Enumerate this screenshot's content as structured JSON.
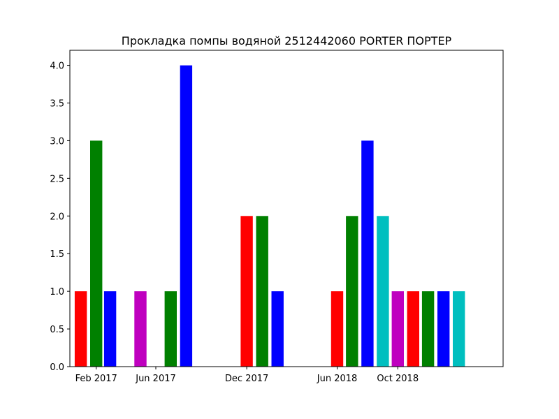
{
  "chart_data": {
    "type": "bar",
    "title": "Прокладка помпы водяной 2512442060 PORTER ПОРТЕР",
    "xlabel": "",
    "ylabel": "",
    "x_axis": {
      "type": "date",
      "tick_labels": [
        "Feb 2017",
        "Jun 2017",
        "Dec 2017",
        "Jun 2018",
        "Oct 2018"
      ],
      "tick_dates": [
        "2017-02-01",
        "2017-06-01",
        "2017-12-01",
        "2018-06-01",
        "2018-10-01"
      ],
      "range": [
        "2016-12-10",
        "2019-05-01"
      ]
    },
    "ylim": [
      0,
      4.2
    ],
    "yticks": [
      0.0,
      0.5,
      1.0,
      1.5,
      2.0,
      2.5,
      3.0,
      3.5,
      4.0
    ],
    "grid": false,
    "legend": "none",
    "bars": [
      {
        "x": "2017-01-01",
        "value": 1,
        "color": "#ff0000"
      },
      {
        "x": "2017-02-01",
        "value": 3,
        "color": "#008000"
      },
      {
        "x": "2017-03-01",
        "value": 1,
        "color": "#0000ff"
      },
      {
        "x": "2017-05-01",
        "value": 1,
        "color": "#bf00bf"
      },
      {
        "x": "2017-07-01",
        "value": 1,
        "color": "#008000"
      },
      {
        "x": "2017-08-01",
        "value": 4,
        "color": "#0000ff"
      },
      {
        "x": "2017-12-01",
        "value": 2,
        "color": "#ff0000"
      },
      {
        "x": "2018-01-01",
        "value": 2,
        "color": "#008000"
      },
      {
        "x": "2018-02-01",
        "value": 1,
        "color": "#0000ff"
      },
      {
        "x": "2018-06-01",
        "value": 1,
        "color": "#ff0000"
      },
      {
        "x": "2018-07-01",
        "value": 2,
        "color": "#008000"
      },
      {
        "x": "2018-08-01",
        "value": 3,
        "color": "#0000ff"
      },
      {
        "x": "2018-09-01",
        "value": 2,
        "color": "#00bfbf"
      },
      {
        "x": "2018-10-01",
        "value": 1,
        "color": "#bf00bf"
      },
      {
        "x": "2018-11-01",
        "value": 1,
        "color": "#ff0000"
      },
      {
        "x": "2018-12-01",
        "value": 1,
        "color": "#008000"
      },
      {
        "x": "2019-01-01",
        "value": 1,
        "color": "#0000ff"
      },
      {
        "x": "2019-02-01",
        "value": 1,
        "color": "#00bfbf"
      }
    ]
  }
}
